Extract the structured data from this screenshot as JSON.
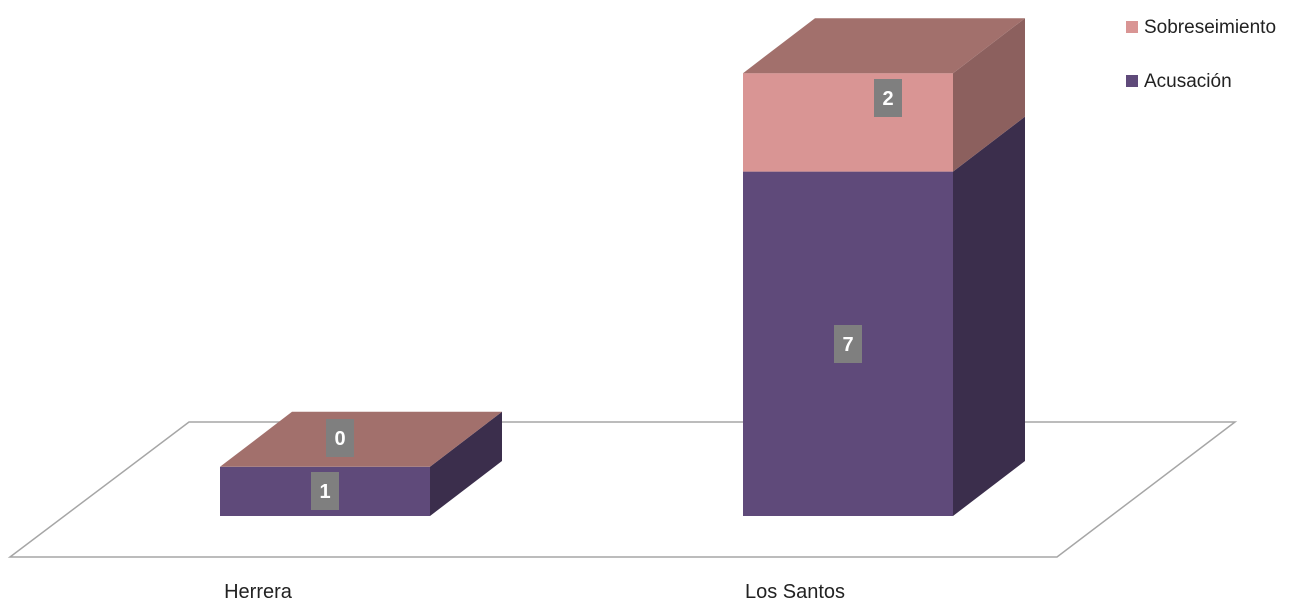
{
  "chart_data": {
    "type": "bar",
    "stacked": true,
    "three_d": true,
    "categories": [
      "Herrera",
      "Los Santos"
    ],
    "series": [
      {
        "name": "Acusación",
        "values": [
          1,
          7
        ],
        "color": "#5f4a7a"
      },
      {
        "name": "Sobreseimiento",
        "values": [
          0,
          2
        ],
        "color": "#d99594"
      }
    ],
    "title": "",
    "xlabel": "",
    "ylabel": "",
    "ylim": [
      0,
      9
    ],
    "grid": false,
    "legend": "top-right",
    "legend_order": [
      "Sobreseimiento",
      "Acusación"
    ]
  }
}
